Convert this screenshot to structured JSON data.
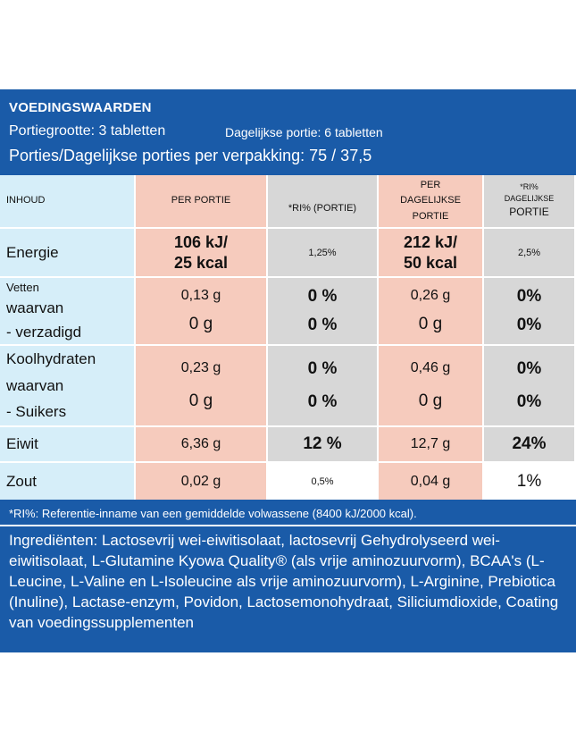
{
  "header": {
    "title": "VOEDINGSWAARDEN",
    "serving_size": "Portiegrootte: 3 tabletten",
    "daily_serving": "Dagelijkse portie: 6 tabletten",
    "servings_per_pack": "Porties/Dagelijkse porties per verpakking: 75 / 37,5"
  },
  "columns": {
    "content": "INHOUD",
    "per_serving": "PER PORTIE",
    "ri_serving": "*RI% (PORTIE)",
    "per_daily": "PER DAGELIJKSE PORTIE",
    "ri_daily_line1": "*RI%",
    "ri_daily_line2": "DAGELIJKSE",
    "ri_daily_line3": "PORTIE"
  },
  "rows": {
    "energy": {
      "name": "Energie",
      "serving_kj": "106 kJ/",
      "serving_kcal": "25 kcal",
      "ri_serving": "1,25%",
      "daily_kj": "212 kJ/",
      "daily_kcal": "50 kcal",
      "ri_daily": "2,5%"
    },
    "fat": {
      "name": "Vetten",
      "sub1": "waarvan",
      "sub2": "- verzadigd",
      "serving": "0,13 g",
      "ri_serving": "0 %",
      "daily": "0,26 g",
      "ri_daily": "0%",
      "sat_serving": "0 g",
      "sat_ri_serving": "0 %",
      "sat_daily": "0 g",
      "sat_ri_daily": "0%"
    },
    "carbs": {
      "name": "Koolhydraten",
      "sub1": "waarvan",
      "sub2": "- Suikers",
      "serving": "0,23 g",
      "ri_serving": "0 %",
      "daily": "0,46 g",
      "ri_daily": "0%",
      "sug_serving": "0 g",
      "sug_ri_serving": "0 %",
      "sug_daily": "0 g",
      "sug_ri_daily": "0%"
    },
    "protein": {
      "name": "Eiwit",
      "serving": "6,36 g",
      "ri_serving": "12 %",
      "daily": "12,7 g",
      "ri_daily": "24%"
    },
    "salt": {
      "name": "Zout",
      "serving": "0,02 g",
      "ri_serving": "0,5%",
      "daily": "0,04 g",
      "ri_daily": "1%"
    }
  },
  "footer": {
    "note": "*RI%: Referentie-inname van een gemiddelde volwassene (8400 kJ/2000 kcal).",
    "ingredients": "Ingrediënten: Lactosevrij wei-eiwitisolaat, lactosevrij Gehydrolyseerd wei-eiwitisolaat, L-Glutamine Kyowa Quality® (als vrije aminozuurvorm), BCAA's (L-Leucine, L-Valine en L-Isoleucine als vrije aminozuurvorm), L-Arginine, Prebiotica (Inuline), Lactase-enzym, Povidon, Lactosemonohydraat, Siliciumdioxide, Coating van voedingssupplementen"
  },
  "colors": {
    "blue": "#1a5ba8",
    "light_blue": "#d6eef9",
    "pink": "#f6cbbd",
    "grey": "#d7d7d7"
  }
}
